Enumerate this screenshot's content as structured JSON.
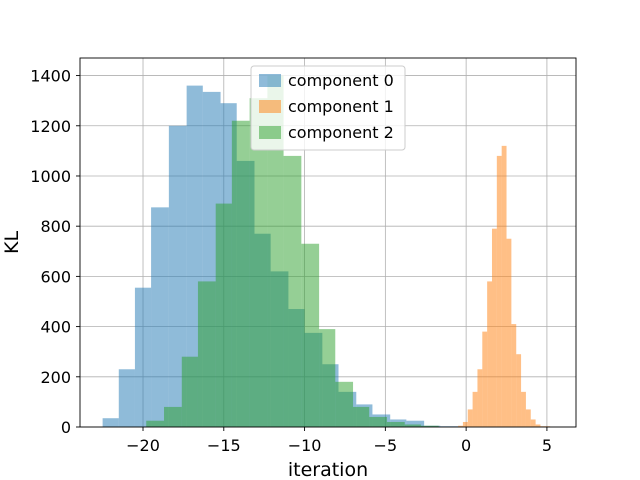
{
  "chart_data": {
    "type": "histogram",
    "xlabel": "iteration",
    "ylabel": "KL",
    "xlim": [
      -23.9,
      6.8
    ],
    "ylim": [
      0,
      1470
    ],
    "grid": true,
    "legend_placement": "upper-center",
    "x_ticks": [
      {
        "value": -20,
        "label": "−20"
      },
      {
        "value": -15,
        "label": "−15"
      },
      {
        "value": -10,
        "label": "−10"
      },
      {
        "value": -5,
        "label": "−5"
      },
      {
        "value": 0,
        "label": "0"
      },
      {
        "value": 5,
        "label": "5"
      }
    ],
    "y_ticks": [
      {
        "value": 0,
        "label": "0"
      },
      {
        "value": 200,
        "label": "200"
      },
      {
        "value": 400,
        "label": "400"
      },
      {
        "value": 600,
        "label": "600"
      },
      {
        "value": 800,
        "label": "800"
      },
      {
        "value": 1000,
        "label": "1000"
      },
      {
        "value": 1200,
        "label": "1200"
      },
      {
        "value": 1400,
        "label": "1400"
      }
    ],
    "series": [
      {
        "name": "component 0",
        "color": "#1f77b4",
        "alpha": 0.5,
        "bins": [
          [
            -22.5,
            -21.5,
            35
          ],
          [
            -21.5,
            -20.5,
            230
          ],
          [
            -20.5,
            -19.5,
            555
          ],
          [
            -19.5,
            -18.4,
            875
          ],
          [
            -18.4,
            -17.3,
            1200
          ],
          [
            -17.3,
            -16.3,
            1360
          ],
          [
            -16.3,
            -15.2,
            1335
          ],
          [
            -15.2,
            -14.2,
            1290
          ],
          [
            -14.2,
            -13.1,
            1060
          ],
          [
            -13.1,
            -12.1,
            770
          ],
          [
            -12.1,
            -11.0,
            620
          ],
          [
            -11.0,
            -10.0,
            470
          ],
          [
            -10.0,
            -8.9,
            375
          ],
          [
            -8.9,
            -7.9,
            250
          ],
          [
            -7.9,
            -6.8,
            140
          ],
          [
            -6.8,
            -5.8,
            90
          ],
          [
            -5.8,
            -4.7,
            50
          ],
          [
            -4.7,
            -3.7,
            30
          ],
          [
            -3.7,
            -2.6,
            25
          ],
          [
            -2.6,
            -1.6,
            5
          ],
          [
            -1.6,
            -0.5,
            3
          ]
        ]
      },
      {
        "name": "component 1",
        "color": "#ff7f0e",
        "alpha": 0.5,
        "bins": [
          [
            -0.5,
            -0.2,
            5
          ],
          [
            -0.2,
            0.1,
            20
          ],
          [
            0.1,
            0.4,
            70
          ],
          [
            0.4,
            0.7,
            140
          ],
          [
            0.7,
            1.0,
            230
          ],
          [
            1.0,
            1.3,
            380
          ],
          [
            1.3,
            1.6,
            580
          ],
          [
            1.6,
            1.9,
            790
          ],
          [
            1.9,
            2.2,
            1080
          ],
          [
            2.2,
            2.5,
            1120
          ],
          [
            2.5,
            2.8,
            750
          ],
          [
            2.8,
            3.1,
            410
          ],
          [
            3.1,
            3.4,
            290
          ],
          [
            3.4,
            3.7,
            140
          ],
          [
            3.7,
            4.0,
            70
          ],
          [
            4.0,
            4.3,
            30
          ],
          [
            4.3,
            4.6,
            10
          ],
          [
            4.6,
            5.2,
            3
          ]
        ]
      },
      {
        "name": "component 2",
        "color": "#2ca02c",
        "alpha": 0.5,
        "bins": [
          [
            -19.8,
            -18.7,
            25
          ],
          [
            -18.7,
            -17.6,
            80
          ],
          [
            -17.6,
            -16.6,
            280
          ],
          [
            -16.6,
            -15.5,
            580
          ],
          [
            -15.5,
            -14.5,
            890
          ],
          [
            -14.5,
            -13.4,
            1220
          ],
          [
            -13.4,
            -12.3,
            1310
          ],
          [
            -12.3,
            -11.3,
            1400
          ],
          [
            -11.3,
            -10.2,
            1080
          ],
          [
            -10.2,
            -9.1,
            730
          ],
          [
            -9.1,
            -8.1,
            390
          ],
          [
            -8.1,
            -7.0,
            180
          ],
          [
            -7.0,
            -6.0,
            80
          ],
          [
            -6.0,
            -4.9,
            40
          ],
          [
            -4.9,
            -3.8,
            20
          ],
          [
            -3.8,
            -2.8,
            10
          ],
          [
            -2.8,
            -1.7,
            5
          ]
        ]
      }
    ]
  }
}
